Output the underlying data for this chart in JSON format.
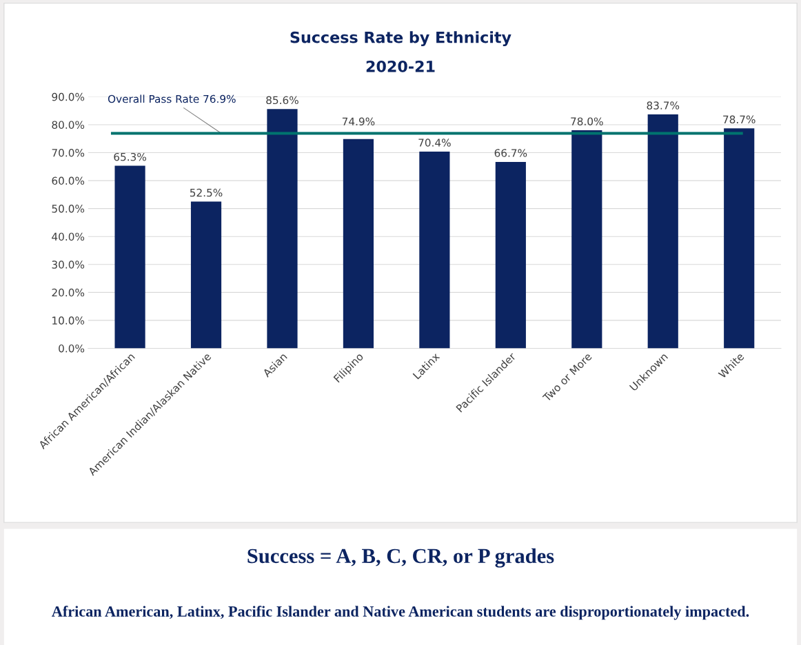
{
  "chart_data": {
    "type": "bar",
    "title": "Success Rate by Ethnicity",
    "subtitle": "2020-21",
    "categories": [
      "African American/African",
      "American Indian/Alaskan Native",
      "Asian",
      "Filipino",
      "Latinx",
      "Pacific Islander",
      "Two or More",
      "Unknown",
      "White"
    ],
    "values": [
      65.3,
      52.5,
      85.6,
      74.9,
      70.4,
      66.7,
      78.0,
      83.7,
      78.7
    ],
    "value_labels": [
      "65.3%",
      "52.5%",
      "85.6%",
      "74.9%",
      "70.4%",
      "66.7%",
      "78.0%",
      "83.7%",
      "78.7%"
    ],
    "color": "#0c2461",
    "ylim": [
      0,
      90
    ],
    "yticks": [
      {
        "value": 0,
        "label": "0.0%"
      },
      {
        "value": 10,
        "label": "10.0%"
      },
      {
        "value": 20,
        "label": "20.0%"
      },
      {
        "value": 30,
        "label": "30.0%"
      },
      {
        "value": 40,
        "label": "40.0%"
      },
      {
        "value": 50,
        "label": "50.0%"
      },
      {
        "value": 60,
        "label": "60.0%"
      },
      {
        "value": 70,
        "label": "70.0%"
      },
      {
        "value": 80,
        "label": "80.0%"
      },
      {
        "value": 90,
        "label": "90.0%"
      }
    ],
    "grid": "y",
    "ref_lines": [
      {
        "axis": "y",
        "value": 76.9,
        "label": "Overall Pass Rate 76.9%",
        "color": "#00736e"
      }
    ],
    "annotations": [
      "Success = A, B, C, CR, or P grades",
      "African American, Latinx, Pacific Islander and Native American students are disproportionately impacted."
    ]
  }
}
